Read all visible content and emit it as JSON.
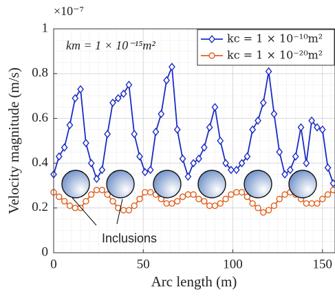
{
  "chart_data": {
    "type": "line",
    "y_multiplier": "×10⁻⁷",
    "x_label": "Arc length (m)",
    "y_label": "Velocity magnitude (m/s)",
    "annotations": [
      "km = 1 × 10⁻¹⁵m²",
      "Inclusions"
    ],
    "x": [
      0,
      3,
      6,
      9,
      12,
      15,
      18,
      21,
      24,
      27,
      30,
      33,
      36,
      39,
      42,
      45,
      48,
      51,
      54,
      57,
      60,
      63,
      66,
      69,
      72,
      75,
      78,
      81,
      84,
      87,
      90,
      93,
      96,
      99,
      102,
      105,
      108,
      111,
      114,
      117,
      120,
      123,
      126,
      129,
      132,
      135,
      138,
      141,
      144,
      147,
      150,
      153,
      156
    ],
    "series": [
      {
        "name": "kc = 1 × 10⁻¹⁰m²",
        "color": "#1a2bc4",
        "marker": "diamond",
        "values": [
          0.35,
          0.43,
          0.47,
          0.57,
          0.69,
          0.73,
          0.49,
          0.4,
          0.33,
          0.37,
          0.53,
          0.67,
          0.69,
          0.71,
          0.75,
          0.53,
          0.43,
          0.36,
          0.37,
          0.54,
          0.62,
          0.77,
          0.83,
          0.55,
          0.42,
          0.34,
          0.4,
          0.42,
          0.47,
          0.56,
          0.65,
          0.5,
          0.4,
          0.37,
          0.37,
          0.4,
          0.43,
          0.55,
          0.59,
          0.67,
          0.81,
          0.62,
          0.45,
          0.35,
          0.37,
          0.43,
          0.56,
          0.4,
          0.59,
          0.56,
          0.55,
          0.38,
          0.31
        ]
      },
      {
        "name": "kc = 1 × 10⁻²⁰m²",
        "color": "#e0601e",
        "marker": "circle",
        "values": [
          0.27,
          0.25,
          0.23,
          0.21,
          0.2,
          0.2,
          0.23,
          0.26,
          0.28,
          0.28,
          0.26,
          0.23,
          0.2,
          0.19,
          0.19,
          0.21,
          0.24,
          0.27,
          0.27,
          0.26,
          0.24,
          0.22,
          0.22,
          0.23,
          0.25,
          0.26,
          0.26,
          0.24,
          0.23,
          0.21,
          0.21,
          0.22,
          0.24,
          0.26,
          0.27,
          0.27,
          0.25,
          0.22,
          0.2,
          0.18,
          0.19,
          0.21,
          0.24,
          0.26,
          0.27,
          0.26,
          0.24,
          0.22,
          0.22,
          0.22,
          0.24,
          0.26,
          0.28
        ]
      }
    ],
    "xlim": [
      0,
      157
    ],
    "ylim": [
      0,
      1
    ],
    "xticks": [
      0,
      50,
      100,
      150
    ],
    "yticks": [
      0,
      0.2,
      0.4,
      0.6,
      0.8,
      1
    ],
    "grid": true,
    "legend": "upper right"
  }
}
